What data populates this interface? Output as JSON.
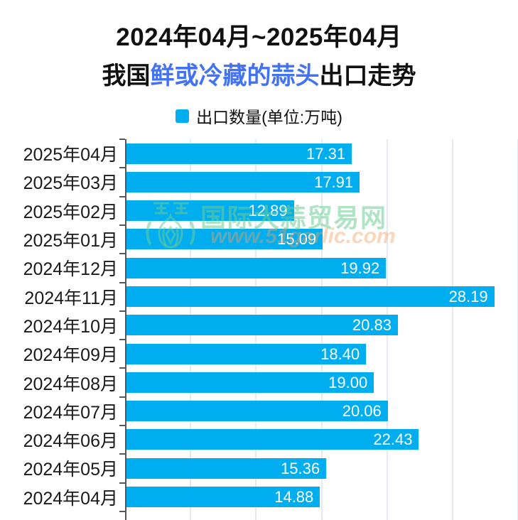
{
  "title": {
    "line1": "2024年04月~2025年04月",
    "line2_prefix": "我国",
    "line2_highlight": "鲜或冷藏的蒜头",
    "line2_suffix": "出口走势",
    "highlight_color": "#4272f5"
  },
  "legend": {
    "label": "出口数量(单位:万吨)",
    "swatch_color": "#00AEEF"
  },
  "watermark": {
    "logo": "garlic-logo",
    "site_name": "国际大蒜贸易网",
    "site_url": "www.51garlic.com",
    "name_color": "#b7e5c9",
    "url_color": "#f8dcc4"
  },
  "chart_data": {
    "type": "bar",
    "orientation": "horizontal",
    "title": "2024年04月~2025年04月 我国鲜或冷藏的蒜头出口走势",
    "series_name": "出口数量(单位:万吨)",
    "categories": [
      "2025年04月",
      "2025年03月",
      "2025年02月",
      "2025年01月",
      "2024年12月",
      "2024年11月",
      "2024年10月",
      "2024年09月",
      "2024年08月",
      "2024年07月",
      "2024年06月",
      "2024年05月",
      "2024年04月"
    ],
    "values": [
      17.31,
      17.91,
      12.89,
      15.09,
      19.92,
      28.19,
      20.83,
      18.4,
      19.0,
      20.06,
      22.43,
      15.36,
      14.88
    ],
    "value_labels": [
      "17.31",
      "17.91",
      "12.89",
      "15.09",
      "19.92",
      "28.19",
      "20.83",
      "18.40",
      "19.00",
      "20.06",
      "22.43",
      "15.36",
      "14.88"
    ],
    "xlabel": "",
    "ylabel": "",
    "xlim": [
      0,
      30
    ],
    "grid_step": 5,
    "grid": true,
    "legend_position": "top",
    "bar_color": "#00AEEF",
    "value_label_color": "#ffffff",
    "axis_color": "#54575c",
    "gridline_color": "#e4e9f2"
  }
}
